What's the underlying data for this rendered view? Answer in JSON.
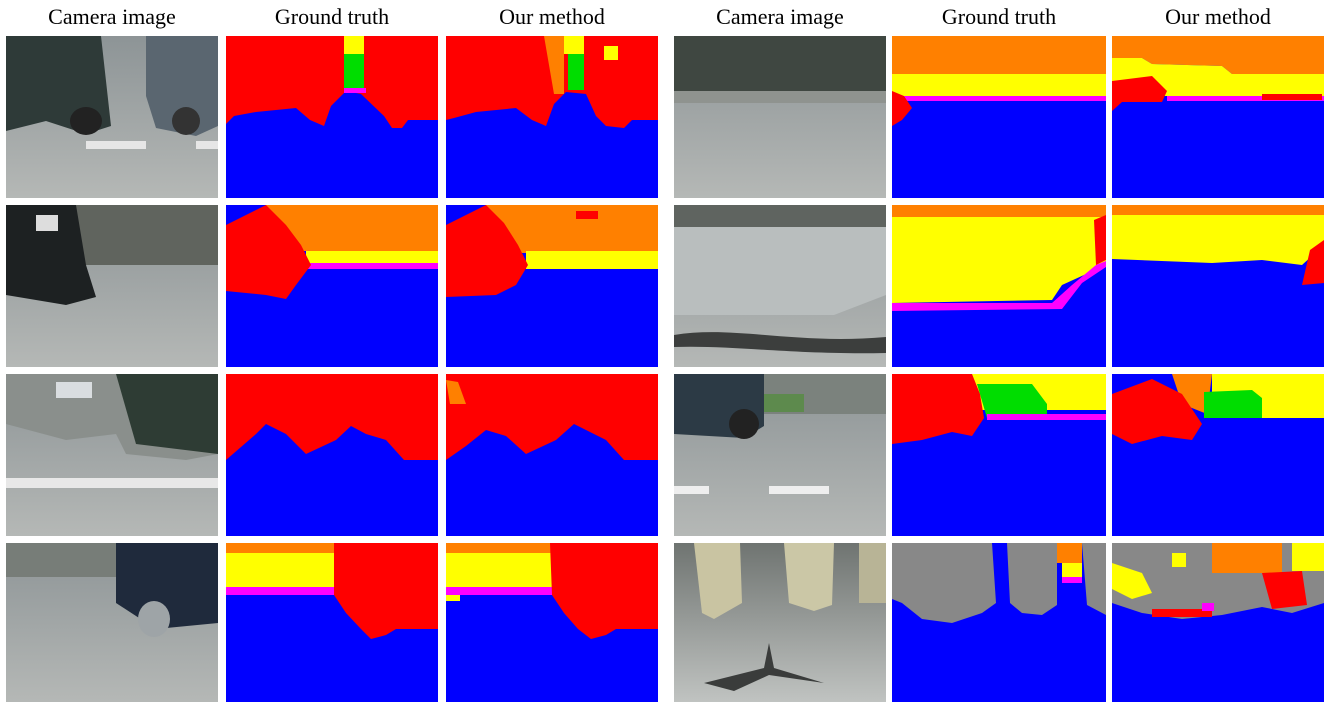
{
  "headers": [
    "Camera image",
    "Ground truth",
    "Our method",
    "Camera image",
    "Ground truth",
    "Our method"
  ]
}
